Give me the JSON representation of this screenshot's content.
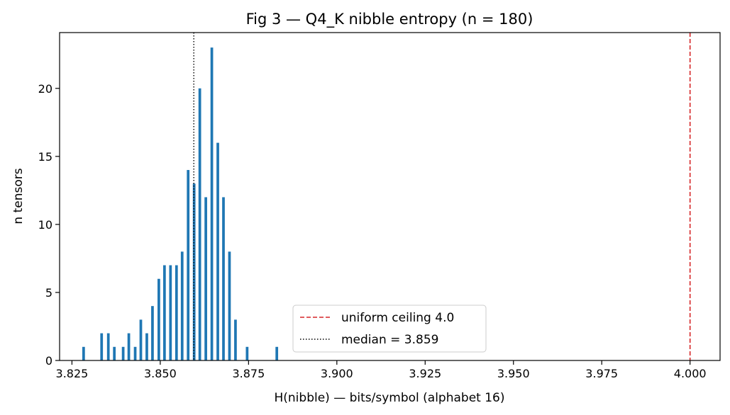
{
  "chart_data": {
    "type": "bar",
    "title": "Fig 3 — Q4_K nibble entropy (n = 180)",
    "xlabel": "H(nibble) — bits/symbol (alphabet 16)",
    "ylabel": "n tensors",
    "xlim": [
      3.8215,
      4.0085
    ],
    "ylim": [
      0,
      24.1
    ],
    "xticks": [
      3.825,
      3.85,
      3.875,
      3.9,
      3.925,
      3.95,
      3.975,
      4.0
    ],
    "xtick_labels": [
      "3.825",
      "3.850",
      "3.875",
      "3.900",
      "3.925",
      "3.950",
      "3.975",
      "4.000"
    ],
    "yticks": [
      0,
      5,
      10,
      15,
      20
    ],
    "ytick_labels": [
      "0",
      "5",
      "10",
      "15",
      "20"
    ],
    "bar_color": "#1f77b4",
    "bar_width": 0.00075,
    "x": [
      3.8283,
      3.8334,
      3.8353,
      3.837,
      3.8395,
      3.8411,
      3.8429,
      3.8445,
      3.8462,
      3.8478,
      3.8496,
      3.8512,
      3.8529,
      3.8546,
      3.8562,
      3.8579,
      3.8596,
      3.8612,
      3.8629,
      3.8646,
      3.8663,
      3.8679,
      3.8696,
      3.8713,
      3.883
    ],
    "values": [
      1,
      2,
      2,
      1,
      1,
      2,
      1,
      3,
      2,
      4,
      6,
      7,
      7,
      7,
      8,
      14,
      13,
      20,
      12,
      23,
      16,
      12,
      8,
      3,
      1
    ],
    "extra_bars": [
      {
        "x": 3.8746,
        "value": 1
      }
    ],
    "reference_lines": [
      {
        "x": 4.0,
        "color": "#d62728",
        "style": "dashed",
        "label": "uniform ceiling 4.0"
      },
      {
        "x": 3.8595,
        "color": "#000000",
        "style": "dotted",
        "label": "median = 3.859"
      }
    ],
    "legend": {
      "placement": "lower-center",
      "entries": [
        "uniform ceiling 4.0",
        "median = 3.859"
      ]
    }
  }
}
